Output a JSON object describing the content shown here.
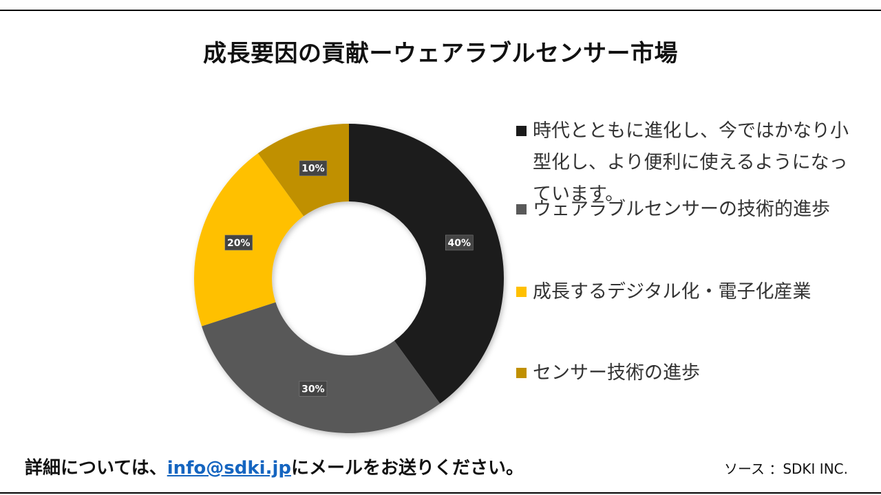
{
  "title": "成長要因の貢献ーウェアラブルセンサー市場",
  "chart_data": {
    "type": "pie",
    "variant": "donut",
    "title": "成長要因の貢献ーウェアラブルセンサー市場",
    "series": [
      {
        "name": "時代とともに進化し、今ではかなり小型化し、より便利に使えるようになっています。",
        "value": 40,
        "label": "40%",
        "color": "#1a1a1a"
      },
      {
        "name": "ウェアラブルセンサーの技術的進歩",
        "value": 30,
        "label": "30%",
        "color": "#595959"
      },
      {
        "name": "成長するデジタル化・電子化産業",
        "value": 20,
        "label": "20%",
        "color": "#ffc000"
      },
      {
        "name": "センサー技術の進歩",
        "value": 10,
        "label": "10%",
        "color": "#c09000"
      }
    ],
    "legend_position": "right"
  },
  "footer": {
    "prefix": "詳細については、",
    "email": "info@sdki.jp",
    "suffix": "にメールをお送りください。",
    "source": "ソース ：SDKI INC."
  }
}
